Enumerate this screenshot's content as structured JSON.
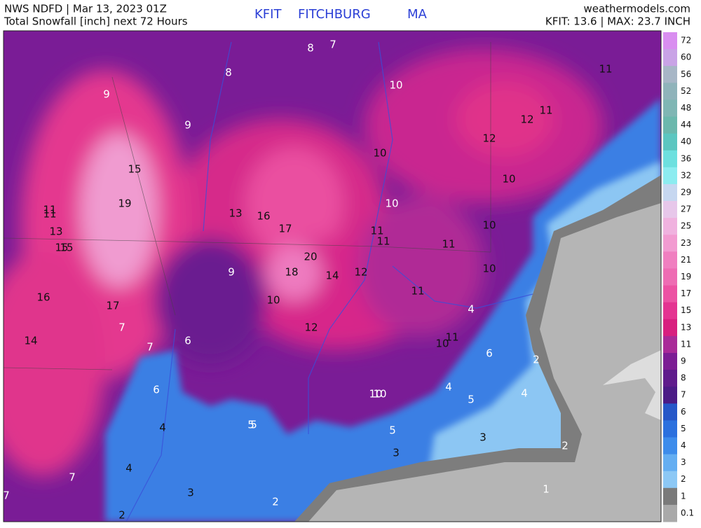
{
  "header": {
    "left_line1": "NWS NDFD | Mar 13, 2023 01Z",
    "left_line2": "Total Snowfall [inch] next 72 Hours",
    "center": [
      "KFIT",
      "FITCHBURG",
      "MA"
    ],
    "right_line1": "weathermodels.com",
    "right_line2": "KFIT: 13.6 | MAX: 23.7 INCH"
  },
  "map_labels": [
    8,
    7,
    9,
    8,
    10,
    11,
    11,
    12,
    9,
    12,
    10,
    15,
    10,
    19,
    10,
    11,
    11,
    13,
    16,
    17,
    10,
    13,
    11,
    11,
    11,
    15,
    15,
    20,
    9,
    18,
    14,
    12,
    10,
    16,
    10,
    11,
    17,
    4,
    7,
    12,
    14,
    7,
    6,
    11,
    10,
    6,
    2,
    6,
    4,
    4,
    10,
    10,
    5,
    5,
    5,
    4,
    5,
    3,
    2,
    3,
    4,
    7,
    7,
    3,
    1,
    2,
    2
  ],
  "legend": {
    "labels": [
      72,
      60,
      56,
      52,
      48,
      44,
      40,
      36,
      32,
      29,
      27,
      25,
      23,
      21,
      19,
      17,
      15,
      13,
      11,
      9,
      8,
      7,
      6,
      5,
      4,
      3,
      2,
      1,
      0.1
    ],
    "colors": [
      "#d98ef0",
      "#c9a3e6",
      "#a7b6c6",
      "#8fb3ba",
      "#7fb6b4",
      "#6bb8ad",
      "#5cc6c0",
      "#6de0df",
      "#8cecf0",
      "#c6d7f0",
      "#e7c7ea",
      "#f0b2df",
      "#f29bd1",
      "#f07fc0",
      "#ee6cb3",
      "#ec52a3",
      "#e43491",
      "#d81f7f",
      "#a92a98",
      "#7c1d94",
      "#5f1b8c",
      "#4b1b86",
      "#2657c8",
      "#2b70de",
      "#3d8ceb",
      "#64aef2",
      "#8cc8f5",
      "#7a7a7a",
      "#a9a9a9"
    ]
  }
}
